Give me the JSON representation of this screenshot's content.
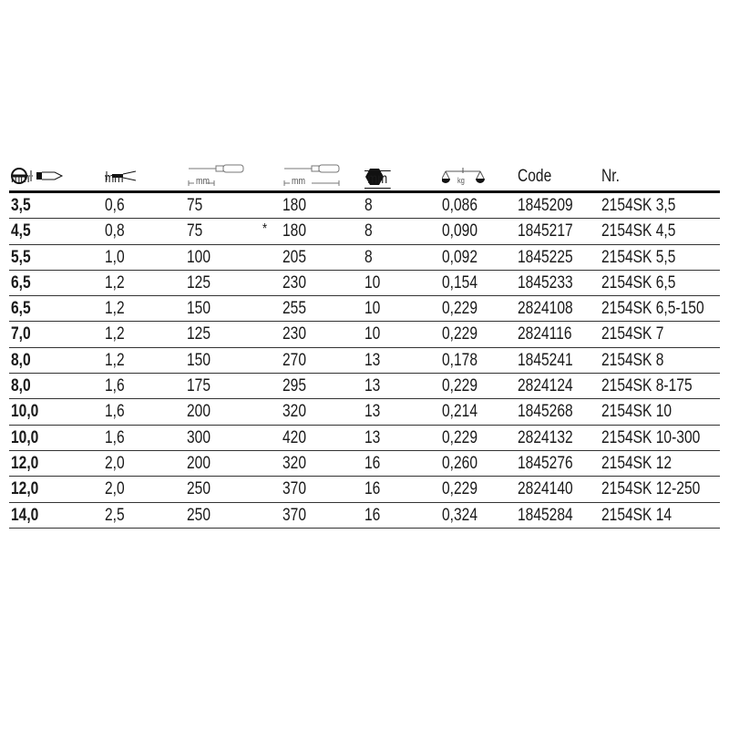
{
  "header": {
    "col0": {
      "icon": "slotted-tip-icon",
      "unit": "mm"
    },
    "col1": {
      "icon": "tip-thickness-icon",
      "unit": "mm"
    },
    "col2": {
      "icon": "blade-length-icon",
      "unit": "mm"
    },
    "col3": {
      "icon": "total-length-icon",
      "unit": "mm"
    },
    "col4": {
      "icon": "hex-icon",
      "unit": "mm"
    },
    "col5": {
      "icon": "scale-weight-icon",
      "unit": "kg"
    },
    "code": "Code",
    "nr": "Nr."
  },
  "rows": [
    {
      "w": "3,5",
      "t": "0,6",
      "bl": "75",
      "mark": "",
      "tl": "180",
      "hex": "8",
      "kg": "0,086",
      "code": "1845209",
      "nr": "2154SK 3,5"
    },
    {
      "w": "4,5",
      "t": "0,8",
      "bl": "75",
      "mark": "*",
      "tl": "180",
      "hex": "8",
      "kg": "0,090",
      "code": "1845217",
      "nr": "2154SK 4,5"
    },
    {
      "w": "5,5",
      "t": "1,0",
      "bl": "100",
      "mark": "",
      "tl": "205",
      "hex": "8",
      "kg": "0,092",
      "code": "1845225",
      "nr": "2154SK 5,5"
    },
    {
      "w": "6,5",
      "t": "1,2",
      "bl": "125",
      "mark": "",
      "tl": "230",
      "hex": "10",
      "kg": "0,154",
      "code": "1845233",
      "nr": "2154SK 6,5"
    },
    {
      "w": "6,5",
      "t": "1,2",
      "bl": "150",
      "mark": "",
      "tl": "255",
      "hex": "10",
      "kg": "0,229",
      "code": "2824108",
      "nr": "2154SK 6,5-150"
    },
    {
      "w": "7,0",
      "t": "1,2",
      "bl": "125",
      "mark": "",
      "tl": "230",
      "hex": "10",
      "kg": "0,229",
      "code": "2824116",
      "nr": "2154SK 7"
    },
    {
      "w": "8,0",
      "t": "1,2",
      "bl": "150",
      "mark": "",
      "tl": "270",
      "hex": "13",
      "kg": "0,178",
      "code": "1845241",
      "nr": "2154SK 8"
    },
    {
      "w": "8,0",
      "t": "1,6",
      "bl": "175",
      "mark": "",
      "tl": "295",
      "hex": "13",
      "kg": "0,229",
      "code": "2824124",
      "nr": "2154SK 8-175"
    },
    {
      "w": "10,0",
      "t": "1,6",
      "bl": "200",
      "mark": "",
      "tl": "320",
      "hex": "13",
      "kg": "0,214",
      "code": "1845268",
      "nr": "2154SK 10"
    },
    {
      "w": "10,0",
      "t": "1,6",
      "bl": "300",
      "mark": "",
      "tl": "420",
      "hex": "13",
      "kg": "0,229",
      "code": "2824132",
      "nr": "2154SK 10-300"
    },
    {
      "w": "12,0",
      "t": "2,0",
      "bl": "200",
      "mark": "",
      "tl": "320",
      "hex": "16",
      "kg": "0,260",
      "code": "1845276",
      "nr": "2154SK 12"
    },
    {
      "w": "12,0",
      "t": "2,0",
      "bl": "250",
      "mark": "",
      "tl": "370",
      "hex": "16",
      "kg": "0,229",
      "code": "2824140",
      "nr": "2154SK 12-250"
    },
    {
      "w": "14,0",
      "t": "2,5",
      "bl": "250",
      "mark": "",
      "tl": "370",
      "hex": "16",
      "kg": "0,324",
      "code": "1845284",
      "nr": "2154SK 14"
    }
  ]
}
